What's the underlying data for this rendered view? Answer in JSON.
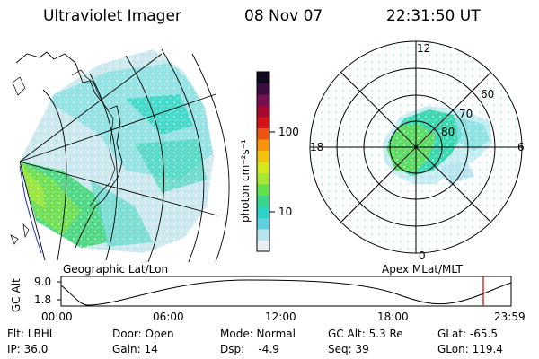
{
  "header": {
    "instrument": "Ultraviolet Imager",
    "date": "08 Nov 07",
    "time": "22:31:50 UT"
  },
  "left_panel": {
    "caption": "Geographic Lat/Lon"
  },
  "right_panel": {
    "caption": "Apex MLat/MLT",
    "mlt_labels": {
      "top": "12",
      "left": "18",
      "right": "6",
      "bottom": "0"
    },
    "mlat_labels": [
      "60",
      "70",
      "80"
    ]
  },
  "colorbar": {
    "unit_label": "photon cm⁻²s⁻¹",
    "ticks": [
      "100",
      "10"
    ],
    "colors": [
      "#e8eef2",
      "#b8e4ee",
      "#5fd0e0",
      "#29d3c6",
      "#39d58e",
      "#62e050",
      "#a6e832",
      "#d6e81a",
      "#f3c30a",
      "#f7940a",
      "#ee5512",
      "#d4101a",
      "#a80830",
      "#741050",
      "#3c0c40",
      "#100a1e"
    ]
  },
  "orbit": {
    "ylabel": "GC Alt",
    "yticks": [
      "9.0",
      "1.8"
    ],
    "xticks": [
      "00:00",
      "06:00",
      "12:00",
      "18:00",
      "23:59"
    ],
    "marker_color": "#d40000"
  },
  "info": {
    "col1": [
      "Flt: LBHL",
      "IP: 36.0"
    ],
    "col2": [
      "Door: Open",
      "Gain: 14"
    ],
    "col3": [
      "Mode: Normal",
      "Dsp:    -4.9"
    ],
    "col4": [
      "GC Alt: 5.3 Re",
      "Seq: 39"
    ],
    "col5": [
      "GLat: -65.5",
      "GLon: 119.4"
    ]
  }
}
